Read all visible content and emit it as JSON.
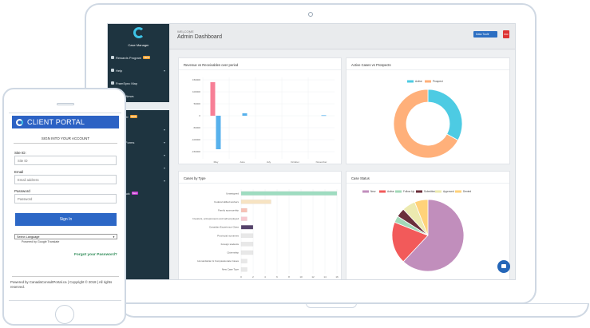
{
  "sidebar": {
    "app_name": "Case Manager",
    "items": [
      {
        "label": "Rewards Program",
        "badge": "NEW"
      },
      {
        "label": "Help"
      },
      {
        "label": "FramSync Map"
      },
      {
        "label": "Notice News"
      },
      {
        "label": "Manager",
        "badge": "NEW"
      },
      {
        "label": ""
      },
      {
        "label": "Public Forms"
      },
      {
        "label": ""
      },
      {
        "label": ""
      },
      {
        "label": ""
      },
      {
        "label": "Feedback",
        "badge": "New"
      }
    ]
  },
  "header": {
    "welcome": "WELCOME",
    "title": "Admin Dashboard",
    "data_tool_label": "Data Tool",
    "pdf_label": "PDF"
  },
  "cards": {
    "revenue_title": "Revenue vs Receivables over period",
    "active_title": "Active Cases vs Prospects",
    "cases_type_title": "Cases by Type",
    "status_title": "Case Status"
  },
  "colors": {
    "pink": "#f77f96",
    "blue": "#57b1ec",
    "cyan": "#4dcbe3",
    "orange": "#ffb07a",
    "green": "#9edcc0",
    "sidebar": "#1e3440",
    "brand": "#2c62c4"
  },
  "chart_data": [
    {
      "type": "bar",
      "title": "Revenue vs Receivables over period",
      "categories": [
        "May",
        "June",
        "July",
        "October",
        "November"
      ],
      "series": [
        {
          "values": [
            140000,
            0,
            0,
            0,
            0
          ]
        },
        {
          "values": [
            -140000,
            10000,
            0,
            0,
            2000
          ]
        }
      ],
      "ylim": [
        -180000,
        160000
      ],
      "yticks": [
        "150000",
        "100000",
        "50000",
        "0",
        "-50000",
        "-100000",
        "-150000"
      ]
    },
    {
      "type": "pie",
      "title": "Active Cases vs Prospects",
      "labels": [
        "Active",
        "Prospect"
      ],
      "values": [
        33,
        67
      ],
      "donut": true
    },
    {
      "type": "bar",
      "orientation": "horizontal",
      "title": "Cases by Type",
      "categories": [
        "Unassigned",
        "Federal skilled workers",
        "Family sponsorship",
        "Investors, entrepreneurs and self-employed",
        "Canadian Experience Class",
        "Provincial nominees",
        "Foreign students",
        "Citizenship",
        "Humanitarian & Compassionate Cases",
        "New Case Type"
      ],
      "values": [
        16,
        5,
        1,
        1,
        2,
        2,
        2,
        2,
        1,
        1
      ],
      "xticks": [
        "0",
        "2",
        "4",
        "6",
        "8",
        "10",
        "12",
        "14",
        "16"
      ],
      "xlim": [
        0,
        16
      ]
    },
    {
      "type": "pie",
      "title": "Case Status",
      "labels": [
        "New",
        "Active",
        "Follow Up",
        "Submitted",
        "Approved",
        "Denied"
      ],
      "values": [
        62,
        19,
        3,
        4,
        6,
        6
      ]
    }
  ],
  "phone": {
    "portal_title": "CLIENT PORTAL",
    "signin_heading": "SIGN INTO YOUR ACCOUNT",
    "site_id_label": "Site ID:",
    "site_id_placeholder": "Site ID",
    "email_label": "Email",
    "email_placeholder": "Email address",
    "password_label": "Password",
    "password_placeholder": "Password",
    "signin_button": "Sign In",
    "language_select": "Select Language",
    "powered_by": "Powered by Google Translate",
    "forgot_password": "Forgot your Password?",
    "footer": "Powered by CanadaConsultPortal.ca | Copyright © 2018 | All rights reserved."
  }
}
